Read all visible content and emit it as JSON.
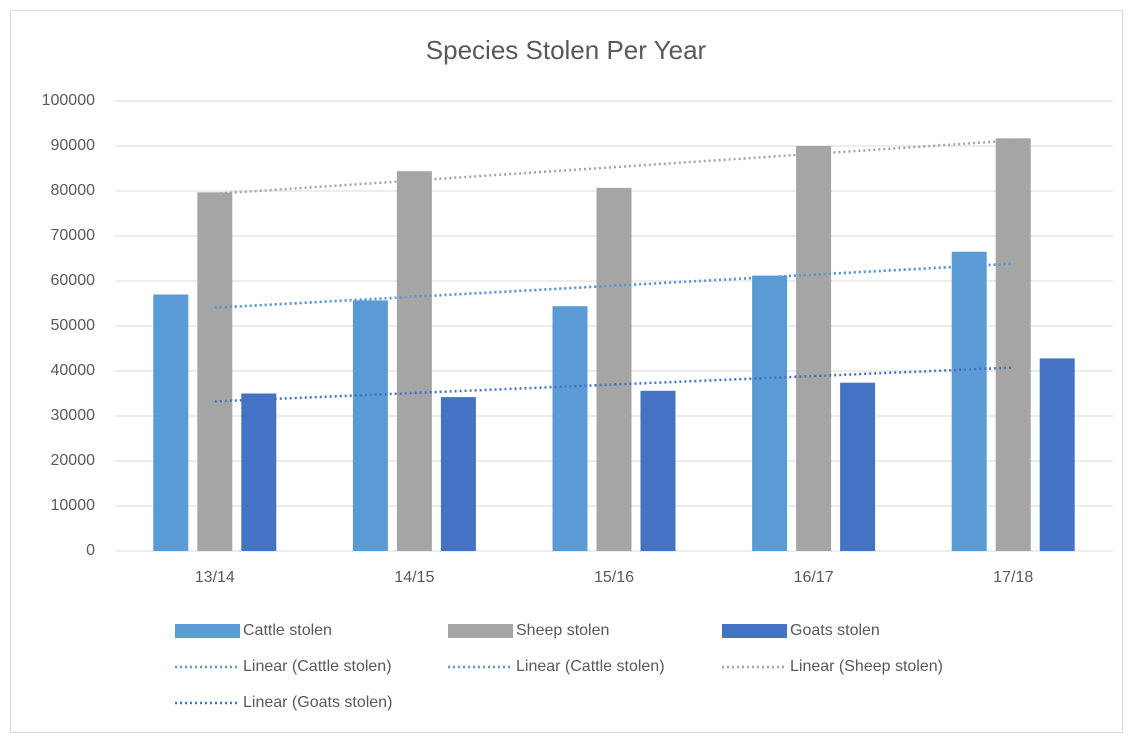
{
  "chart_data": {
    "type": "bar",
    "title": "Species Stolen Per Year",
    "categories": [
      "13/14",
      "14/15",
      "15/16",
      "16/17",
      "17/18"
    ],
    "series": [
      {
        "name": "Cattle stolen",
        "color": "#5b9bd5",
        "values": [
          57000,
          55700,
          54400,
          61200,
          66500
        ]
      },
      {
        "name": "Sheep stolen",
        "color": "#a5a5a5",
        "values": [
          79700,
          84400,
          80700,
          90000,
          91700
        ]
      },
      {
        "name": "Goats stolen",
        "color": "#4472c4",
        "values": [
          35000,
          34200,
          35600,
          37400,
          42800
        ]
      }
    ],
    "trendlines": [
      {
        "name": "Linear (Cattle stolen)",
        "of": "Cattle stolen",
        "color": "#5b9bd5"
      },
      {
        "name": "Linear (Cattle stolen)",
        "of": "Cattle stolen",
        "color": "#5b9bd5"
      },
      {
        "name": "Linear (Sheep stolen)",
        "of": "Sheep stolen",
        "color": "#a5a5a5"
      },
      {
        "name": "Linear (Goats stolen)",
        "of": "Goats stolen",
        "color": "#4472c4"
      }
    ],
    "ylim": [
      0,
      100000
    ],
    "yticks": [
      0,
      10000,
      20000,
      30000,
      40000,
      50000,
      60000,
      70000,
      80000,
      90000,
      100000
    ],
    "grid": true
  }
}
